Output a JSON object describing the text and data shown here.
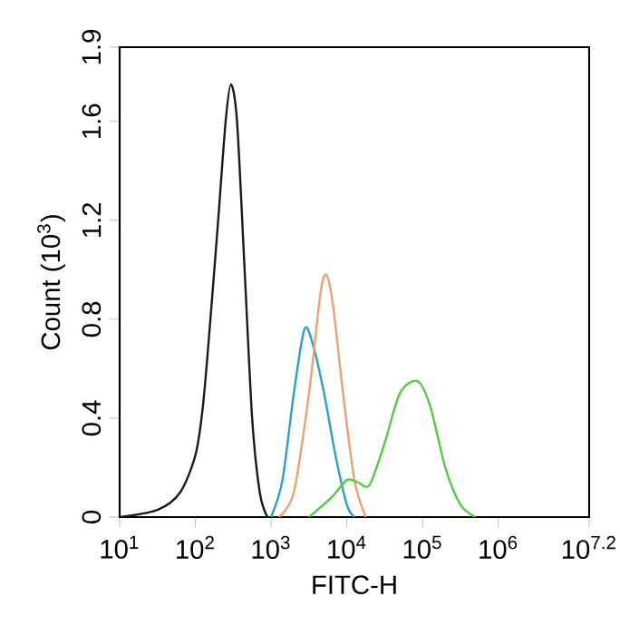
{
  "chart_data": {
    "type": "line",
    "xlabel": "FITC-H",
    "ylabel": "Count (10$^{3}$)",
    "log": "x",
    "xlim": [
      10,
      15848932
    ],
    "ylim": [
      0,
      1.9
    ],
    "xticks": [
      {
        "value": 10,
        "label": "10$^{1}$"
      },
      {
        "value": 100,
        "label": "10$^{2}$"
      },
      {
        "value": 1000,
        "label": "10$^{3}$"
      },
      {
        "value": 10000,
        "label": "10$^{4}$"
      },
      {
        "value": 100000,
        "label": "10$^{5}$"
      },
      {
        "value": 1000000,
        "label": "10$^{6}$"
      },
      {
        "value": 15848932,
        "label": "10$^{7.2}$"
      }
    ],
    "yticks": [
      0,
      0.4,
      0.8,
      1.2,
      1.6,
      1.9
    ],
    "grid": false,
    "series": [
      {
        "color": "#1a1a1a",
        "x": [
          10,
          32,
          63,
          100,
          126,
          158,
          200,
          251,
          295,
          355,
          447,
          562,
          708,
          891
        ],
        "values": [
          0,
          0.03,
          0.1,
          0.25,
          0.45,
          0.8,
          1.2,
          1.6,
          1.75,
          1.6,
          1.0,
          0.4,
          0.1,
          0
        ]
      },
      {
        "color": "#2aa0d0",
        "x": [
          1000,
          1413,
          1995,
          2754,
          3548,
          5012,
          7079,
          10000,
          12589
        ],
        "values": [
          0,
          0.15,
          0.5,
          0.76,
          0.7,
          0.5,
          0.25,
          0.05,
          0
        ]
      },
      {
        "color": "#f0a070",
        "x": [
          1259,
          1995,
          3162,
          4467,
          5370,
          6607,
          8913,
          12589,
          17783
        ],
        "values": [
          0,
          0.1,
          0.5,
          0.9,
          0.98,
          0.85,
          0.5,
          0.15,
          0
        ]
      },
      {
        "color": "#55cc44",
        "x": [
          3162,
          6310,
          10000,
          14125,
          19953,
          31623,
          50119,
          85114,
          125893,
          199526,
          316228,
          501187
        ],
        "values": [
          0,
          0.08,
          0.15,
          0.14,
          0.13,
          0.3,
          0.5,
          0.55,
          0.45,
          0.2,
          0.05,
          0
        ]
      }
    ]
  }
}
